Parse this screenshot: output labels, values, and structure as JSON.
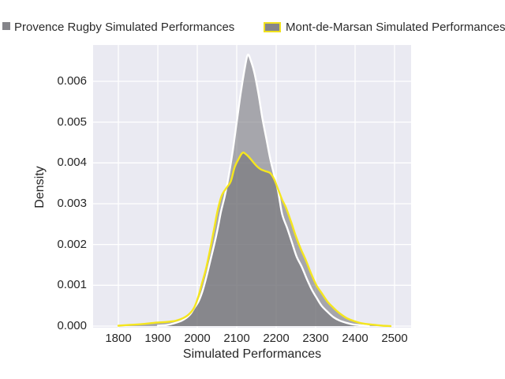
{
  "figure": {
    "background": "#ffffff",
    "plot_background": "#EAEAF2",
    "grid_color": "#ffffff",
    "text_color": "#262626"
  },
  "legend": {
    "items": [
      {
        "label": "Provence Rugby Simulated Performances",
        "swatch_color": "#85858A",
        "swatch_border": "none"
      },
      {
        "label": "Mont-de-Marsan Simulated Performances",
        "swatch_color": "#85858A",
        "swatch_border": "#F0E11E"
      }
    ]
  },
  "axes": {
    "xlabel": "Simulated Performances",
    "ylabel": "Density",
    "x_ticks": [
      1800,
      1900,
      2000,
      2100,
      2200,
      2300,
      2400,
      2500
    ],
    "y_ticks": [
      "0.000",
      "0.001",
      "0.002",
      "0.003",
      "0.004",
      "0.005",
      "0.006"
    ],
    "xlim": [
      1736,
      2542
    ],
    "ylim": [
      0,
      0.00693
    ]
  },
  "chart_data": {
    "type": "area",
    "kind": "kde-density",
    "title": "",
    "xlabel": "Simulated Performances",
    "ylabel": "Density",
    "xlim": [
      1736,
      2542
    ],
    "ylim": [
      0,
      0.00693
    ],
    "grid": true,
    "legend_position": "top-outside",
    "series": [
      {
        "name": "Provence Rugby Simulated Performances",
        "line_color": "#FFFFFF",
        "fill_color": "rgba(110,110,115,0.55)",
        "peak": {
          "x": 2128,
          "density": 0.00665
        },
        "points": [
          [
            1900,
            1e-05
          ],
          [
            1925,
            3e-05
          ],
          [
            1945,
            8e-05
          ],
          [
            1960,
            0.00013
          ],
          [
            1972,
            0.0002
          ],
          [
            1983,
            0.0003
          ],
          [
            1993,
            0.00045
          ],
          [
            2003,
            0.0006
          ],
          [
            2013,
            0.00085
          ],
          [
            2023,
            0.0012
          ],
          [
            2033,
            0.0016
          ],
          [
            2043,
            0.002
          ],
          [
            2052,
            0.0024
          ],
          [
            2060,
            0.0028
          ],
          [
            2070,
            0.0032
          ],
          [
            2080,
            0.0037
          ],
          [
            2090,
            0.0043
          ],
          [
            2100,
            0.005
          ],
          [
            2110,
            0.0057
          ],
          [
            2120,
            0.0063
          ],
          [
            2128,
            0.00665
          ],
          [
            2136,
            0.0065
          ],
          [
            2145,
            0.0062
          ],
          [
            2155,
            0.0057
          ],
          [
            2165,
            0.0051
          ],
          [
            2175,
            0.0046
          ],
          [
            2185,
            0.0041
          ],
          [
            2195,
            0.0037
          ],
          [
            2205,
            0.0033
          ],
          [
            2215,
            0.00275
          ],
          [
            2228,
            0.0024
          ],
          [
            2240,
            0.00205
          ],
          [
            2252,
            0.0017
          ],
          [
            2265,
            0.00145
          ],
          [
            2278,
            0.00115
          ],
          [
            2290,
            0.0009
          ],
          [
            2302,
            0.0007
          ],
          [
            2315,
            0.0005
          ],
          [
            2330,
            0.00035
          ],
          [
            2345,
            0.00022
          ],
          [
            2360,
            0.00014
          ],
          [
            2378,
            8e-05
          ],
          [
            2395,
            4e-05
          ],
          [
            2415,
            2e-05
          ],
          [
            2435,
            0
          ]
        ]
      },
      {
        "name": "Mont-de-Marsan Simulated Performances",
        "line_color": "#F5E61E",
        "fill_color": "rgba(110,110,115,0.55)",
        "peak": {
          "x": 2115,
          "density": 0.00425
        },
        "points": [
          [
            1800,
            1e-05
          ],
          [
            1830,
            3e-05
          ],
          [
            1860,
            5e-05
          ],
          [
            1890,
            8e-05
          ],
          [
            1920,
            0.0001
          ],
          [
            1945,
            0.00013
          ],
          [
            1965,
            0.0002
          ],
          [
            1980,
            0.0003
          ],
          [
            1992,
            0.00045
          ],
          [
            2002,
            0.0007
          ],
          [
            2012,
            0.00105
          ],
          [
            2022,
            0.0014
          ],
          [
            2032,
            0.00185
          ],
          [
            2042,
            0.00235
          ],
          [
            2052,
            0.00285
          ],
          [
            2062,
            0.0032
          ],
          [
            2075,
            0.0034
          ],
          [
            2085,
            0.00355
          ],
          [
            2095,
            0.0039
          ],
          [
            2105,
            0.0041
          ],
          [
            2115,
            0.00425
          ],
          [
            2125,
            0.0042
          ],
          [
            2135,
            0.0041
          ],
          [
            2148,
            0.00395
          ],
          [
            2160,
            0.00385
          ],
          [
            2172,
            0.0038
          ],
          [
            2185,
            0.00375
          ],
          [
            2195,
            0.0036
          ],
          [
            2205,
            0.00335
          ],
          [
            2215,
            0.0031
          ],
          [
            2225,
            0.0029
          ],
          [
            2238,
            0.00255
          ],
          [
            2250,
            0.0022
          ],
          [
            2262,
            0.0019
          ],
          [
            2275,
            0.00162
          ],
          [
            2288,
            0.0013
          ],
          [
            2302,
            0.001
          ],
          [
            2316,
            0.0008
          ],
          [
            2330,
            0.0006
          ],
          [
            2345,
            0.00045
          ],
          [
            2360,
            0.00032
          ],
          [
            2378,
            0.0002
          ],
          [
            2395,
            0.00013
          ],
          [
            2412,
            8e-05
          ],
          [
            2430,
            5e-05
          ],
          [
            2450,
            3e-05
          ],
          [
            2470,
            1e-05
          ],
          [
            2490,
            0
          ]
        ]
      }
    ]
  }
}
